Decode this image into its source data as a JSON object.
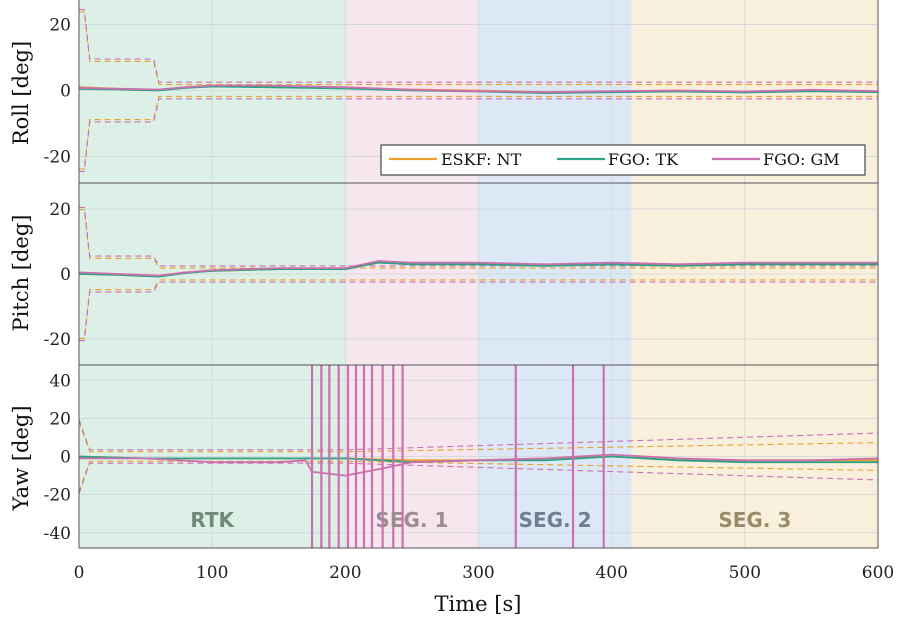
{
  "chart_data": {
    "type": "line",
    "xlabel": "Time [s]",
    "xlim": [
      0,
      600
    ],
    "xticks": [
      "0",
      "100",
      "200",
      "300",
      "400",
      "500",
      "600"
    ],
    "legend": {
      "placement": "bottom-right of top panel",
      "entries": [
        {
          "name": "ESKF: NT",
          "color": "#E8A22A"
        },
        {
          "name": "FGO: TK",
          "color": "#2AA384"
        },
        {
          "name": "FGO: GM",
          "color": "#CC6FAF"
        }
      ]
    },
    "segments": [
      {
        "label": "RTK",
        "start": 0,
        "end": 200,
        "fill": "#DDF0E7",
        "text_color": "#6E8A78"
      },
      {
        "label": "SEG. 1",
        "start": 200,
        "end": 300,
        "fill": "#F6E7EE",
        "text_color": "#9E8A93"
      },
      {
        "label": "SEG. 2",
        "start": 300,
        "end": 415,
        "fill": "#DCE8F5",
        "text_color": "#6F7F8E"
      },
      {
        "label": "SEG. 3",
        "start": 415,
        "end": 600,
        "fill": "#F8F0DD",
        "text_color": "#998A6A"
      }
    ],
    "panels": [
      {
        "ylabel": "Roll [deg]",
        "ylim": [
          -28,
          28
        ],
        "yticks": [
          -20,
          0,
          20
        ],
        "series": [
          {
            "name": "ESKF: NT",
            "color": "#E8A22A",
            "x": [
              0,
              30,
              60,
              80,
              100,
              140,
              200,
              250,
              300,
              350,
              400,
              450,
              500,
              550,
              600
            ],
            "y": [
              1,
              0.5,
              0.2,
              0.8,
              1.5,
              1.2,
              0.8,
              0.3,
              0,
              -0.5,
              -0.3,
              0,
              -0.5,
              0,
              -0.3
            ]
          },
          {
            "name": "FGO: TK",
            "color": "#2AA384",
            "x": [
              0,
              30,
              60,
              80,
              100,
              140,
              200,
              250,
              300,
              350,
              400,
              450,
              500,
              550,
              600
            ],
            "y": [
              0.5,
              0.3,
              0,
              0.8,
              1.2,
              1,
              0.6,
              0,
              -0.3,
              -0.8,
              -0.5,
              -0.3,
              -0.6,
              -0.2,
              -0.5
            ]
          },
          {
            "name": "FGO: GM",
            "color": "#CC6FAF",
            "x": [
              0,
              30,
              60,
              80,
              100,
              140,
              200,
              250,
              300,
              350,
              400,
              450,
              500,
              550,
              600
            ],
            "y": [
              0.8,
              0.5,
              0.3,
              1,
              1.5,
              1.5,
              1,
              0.2,
              -0.2,
              -0.5,
              -0.2,
              0,
              -0.3,
              0.2,
              -0.2
            ]
          }
        ]
      },
      {
        "ylabel": "Pitch [deg]",
        "ylim": [
          -28,
          28
        ],
        "yticks": [
          -20,
          0,
          20
        ],
        "series": [
          {
            "name": "ESKF: NT",
            "color": "#E8A22A",
            "x": [
              0,
              30,
              60,
              80,
              100,
              150,
              200,
              225,
              250,
              300,
              350,
              400,
              450,
              500,
              550,
              600
            ],
            "y": [
              0,
              0,
              -0.5,
              0.5,
              1,
              1.5,
              1.5,
              3.5,
              3,
              3,
              2.5,
              3,
              2.5,
              3,
              3,
              3
            ]
          },
          {
            "name": "FGO: TK",
            "color": "#2AA384",
            "x": [
              0,
              30,
              60,
              80,
              100,
              150,
              200,
              225,
              250,
              300,
              350,
              400,
              450,
              500,
              550,
              600
            ],
            "y": [
              0,
              -0.3,
              -0.8,
              0.3,
              1,
              1.5,
              1.5,
              3.5,
              3,
              3,
              2.5,
              3,
              2.5,
              3,
              3,
              3
            ]
          },
          {
            "name": "FGO: GM",
            "color": "#CC6FAF",
            "x": [
              0,
              30,
              60,
              80,
              100,
              150,
              200,
              225,
              250,
              300,
              350,
              400,
              450,
              500,
              550,
              600
            ],
            "y": [
              0.5,
              0,
              -0.5,
              0.5,
              1.2,
              1.8,
              1.8,
              4,
              3.5,
              3.5,
              3,
              3.5,
              3,
              3.5,
              3.5,
              3.5
            ]
          }
        ]
      },
      {
        "ylabel": "Yaw [deg]",
        "ylim": [
          -48,
          48
        ],
        "yticks": [
          -40,
          -20,
          0,
          20,
          40
        ],
        "series": [
          {
            "name": "ESKF: NT",
            "color": "#E8A22A",
            "x": [
              0,
              50,
              100,
              150,
              200,
              250,
              300,
              350,
              400,
              450,
              500,
              550,
              600
            ],
            "y": [
              0,
              -1,
              -1,
              -1,
              -1,
              -2,
              -2,
              -1,
              0,
              -2,
              -2,
              -2,
              -2
            ]
          },
          {
            "name": "FGO: TK",
            "color": "#2AA384",
            "x": [
              0,
              50,
              100,
              150,
              200,
              250,
              300,
              350,
              400,
              450,
              500,
              550,
              600
            ],
            "y": [
              0,
              -1,
              -1,
              -1,
              -1,
              -3,
              -2,
              -2,
              0,
              -2,
              -3,
              -3,
              -3
            ]
          },
          {
            "name": "FGO: GM",
            "color": "#CC6FAF",
            "x": [
              0,
              50,
              100,
              150,
              170,
              175,
              200,
              230,
              250,
              300,
              350,
              400,
              450,
              500,
              550,
              600
            ],
            "y": [
              -1,
              -1,
              -3,
              -3,
              -2,
              -8,
              -10,
              -6,
              -3,
              -2,
              -1,
              1,
              -1,
              -2,
              -2,
              -1
            ]
          }
        ]
      }
    ]
  }
}
